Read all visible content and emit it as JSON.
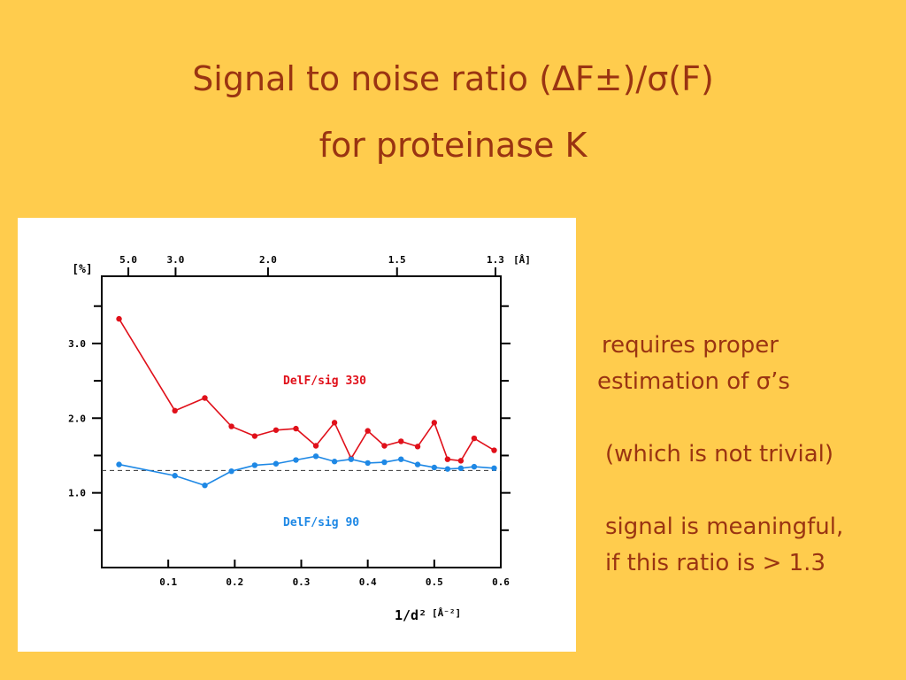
{
  "slide": {
    "title_line1": "Signal to  noise  ratio  (ΔF±)/σ(F)",
    "title_line2": "for proteinase K",
    "notes": [
      "requires proper",
      "estimation of σ’s",
      "(which is not trivial)",
      "signal is meaningful,",
      "if this ratio is > 1.3"
    ]
  },
  "chart_data": {
    "type": "line",
    "xlabel": "1/d²",
    "xlabel_unit": "[Å⁻²]",
    "ylabel": "[%]",
    "x_ticks": [
      "0.1",
      "0.2",
      "0.3",
      "0.4",
      "0.5",
      "0.6"
    ],
    "x_tick_values": [
      0.1,
      0.2,
      0.3,
      0.4,
      0.5,
      0.6
    ],
    "xlim": [
      0.0,
      0.6
    ],
    "y_ticks": [
      "1.0",
      "2.0",
      "3.0"
    ],
    "y_tick_values": [
      1.0,
      2.0,
      3.0
    ],
    "ylim": [
      0.0,
      3.9
    ],
    "top_axis_label_unit": "[Å]",
    "top_ticks": [
      "5.0",
      "3.0",
      "2.0",
      "1.5",
      "1.3"
    ],
    "top_tick_values": [
      0.04,
      0.111,
      0.25,
      0.444,
      0.592
    ],
    "reference_line_y": 1.3,
    "colors": {
      "series1": "#e0101a",
      "series2": "#1e88e5",
      "ref": "#333333"
    },
    "series": [
      {
        "name": "DelF/sig 330",
        "color": "#e0101a",
        "x": [
          0.026,
          0.11,
          0.155,
          0.195,
          0.23,
          0.262,
          0.292,
          0.322,
          0.35,
          0.375,
          0.4,
          0.425,
          0.45,
          0.475,
          0.5,
          0.52,
          0.54,
          0.56,
          0.59
        ],
        "values": [
          3.33,
          2.1,
          2.27,
          1.89,
          1.76,
          1.84,
          1.86,
          1.63,
          1.94,
          1.46,
          1.83,
          1.63,
          1.69,
          1.62,
          1.94,
          1.45,
          1.43,
          1.73,
          1.57
        ]
      },
      {
        "name": "DelF/sig 90",
        "color": "#1e88e5",
        "x": [
          0.026,
          0.11,
          0.155,
          0.195,
          0.23,
          0.262,
          0.292,
          0.322,
          0.35,
          0.375,
          0.4,
          0.425,
          0.45,
          0.475,
          0.5,
          0.52,
          0.54,
          0.56,
          0.59
        ],
        "values": [
          1.38,
          1.23,
          1.1,
          1.29,
          1.37,
          1.39,
          1.44,
          1.49,
          1.42,
          1.45,
          1.4,
          1.41,
          1.45,
          1.38,
          1.34,
          1.32,
          1.33,
          1.35,
          1.33
        ]
      }
    ]
  }
}
